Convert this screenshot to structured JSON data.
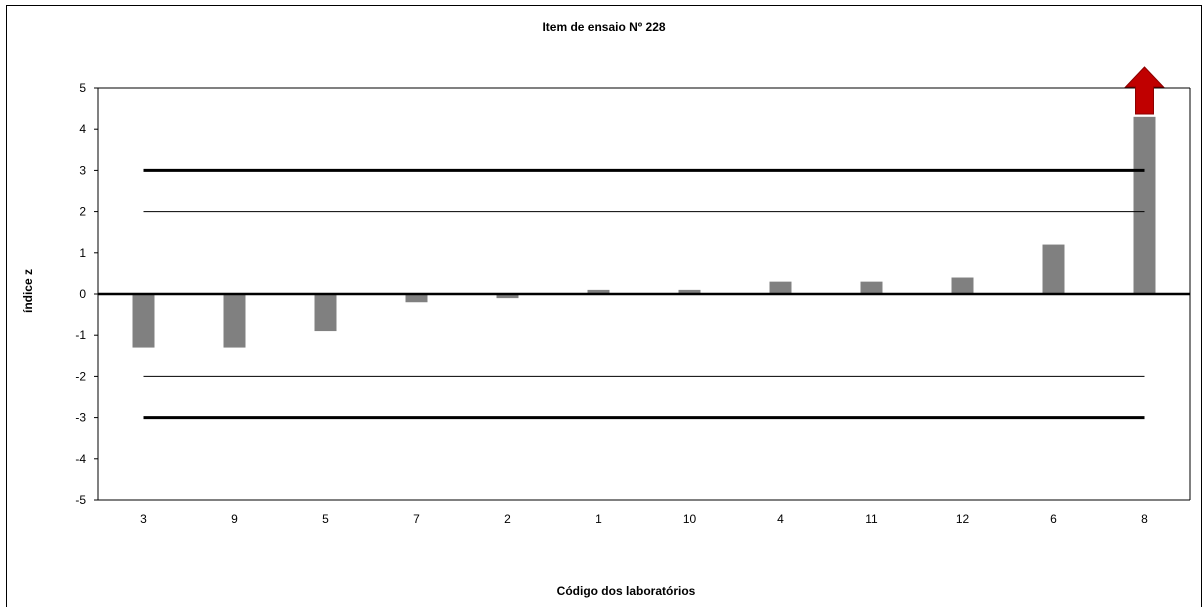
{
  "chart_data": {
    "type": "bar",
    "title": "Item de ensaio Nº 228",
    "xlabel": "Código dos laboratórios",
    "ylabel": "índice z",
    "categories": [
      "3",
      "9",
      "5",
      "7",
      "2",
      "1",
      "10",
      "4",
      "11",
      "12",
      "6",
      "8"
    ],
    "values": [
      -1.3,
      -1.3,
      -0.9,
      -0.2,
      -0.1,
      0.1,
      0.1,
      0.3,
      0.3,
      0.4,
      1.2,
      4.3
    ],
    "ylim": [
      -5,
      5
    ],
    "yticks": [
      "5",
      "4",
      "3",
      "2",
      "1",
      "0",
      "-1",
      "-2",
      "-3",
      "-4",
      "-5"
    ],
    "reference_lines": [
      {
        "value": 3,
        "style": "thick"
      },
      {
        "value": 2,
        "style": "thin"
      },
      {
        "value": 0,
        "style": "thick"
      },
      {
        "value": -2,
        "style": "thin"
      },
      {
        "value": -3,
        "style": "thick"
      }
    ],
    "off_scale_marker": {
      "category": "8",
      "direction": "up"
    },
    "bar_color": "#808080",
    "marker_color": "#c00000",
    "grid": false
  }
}
